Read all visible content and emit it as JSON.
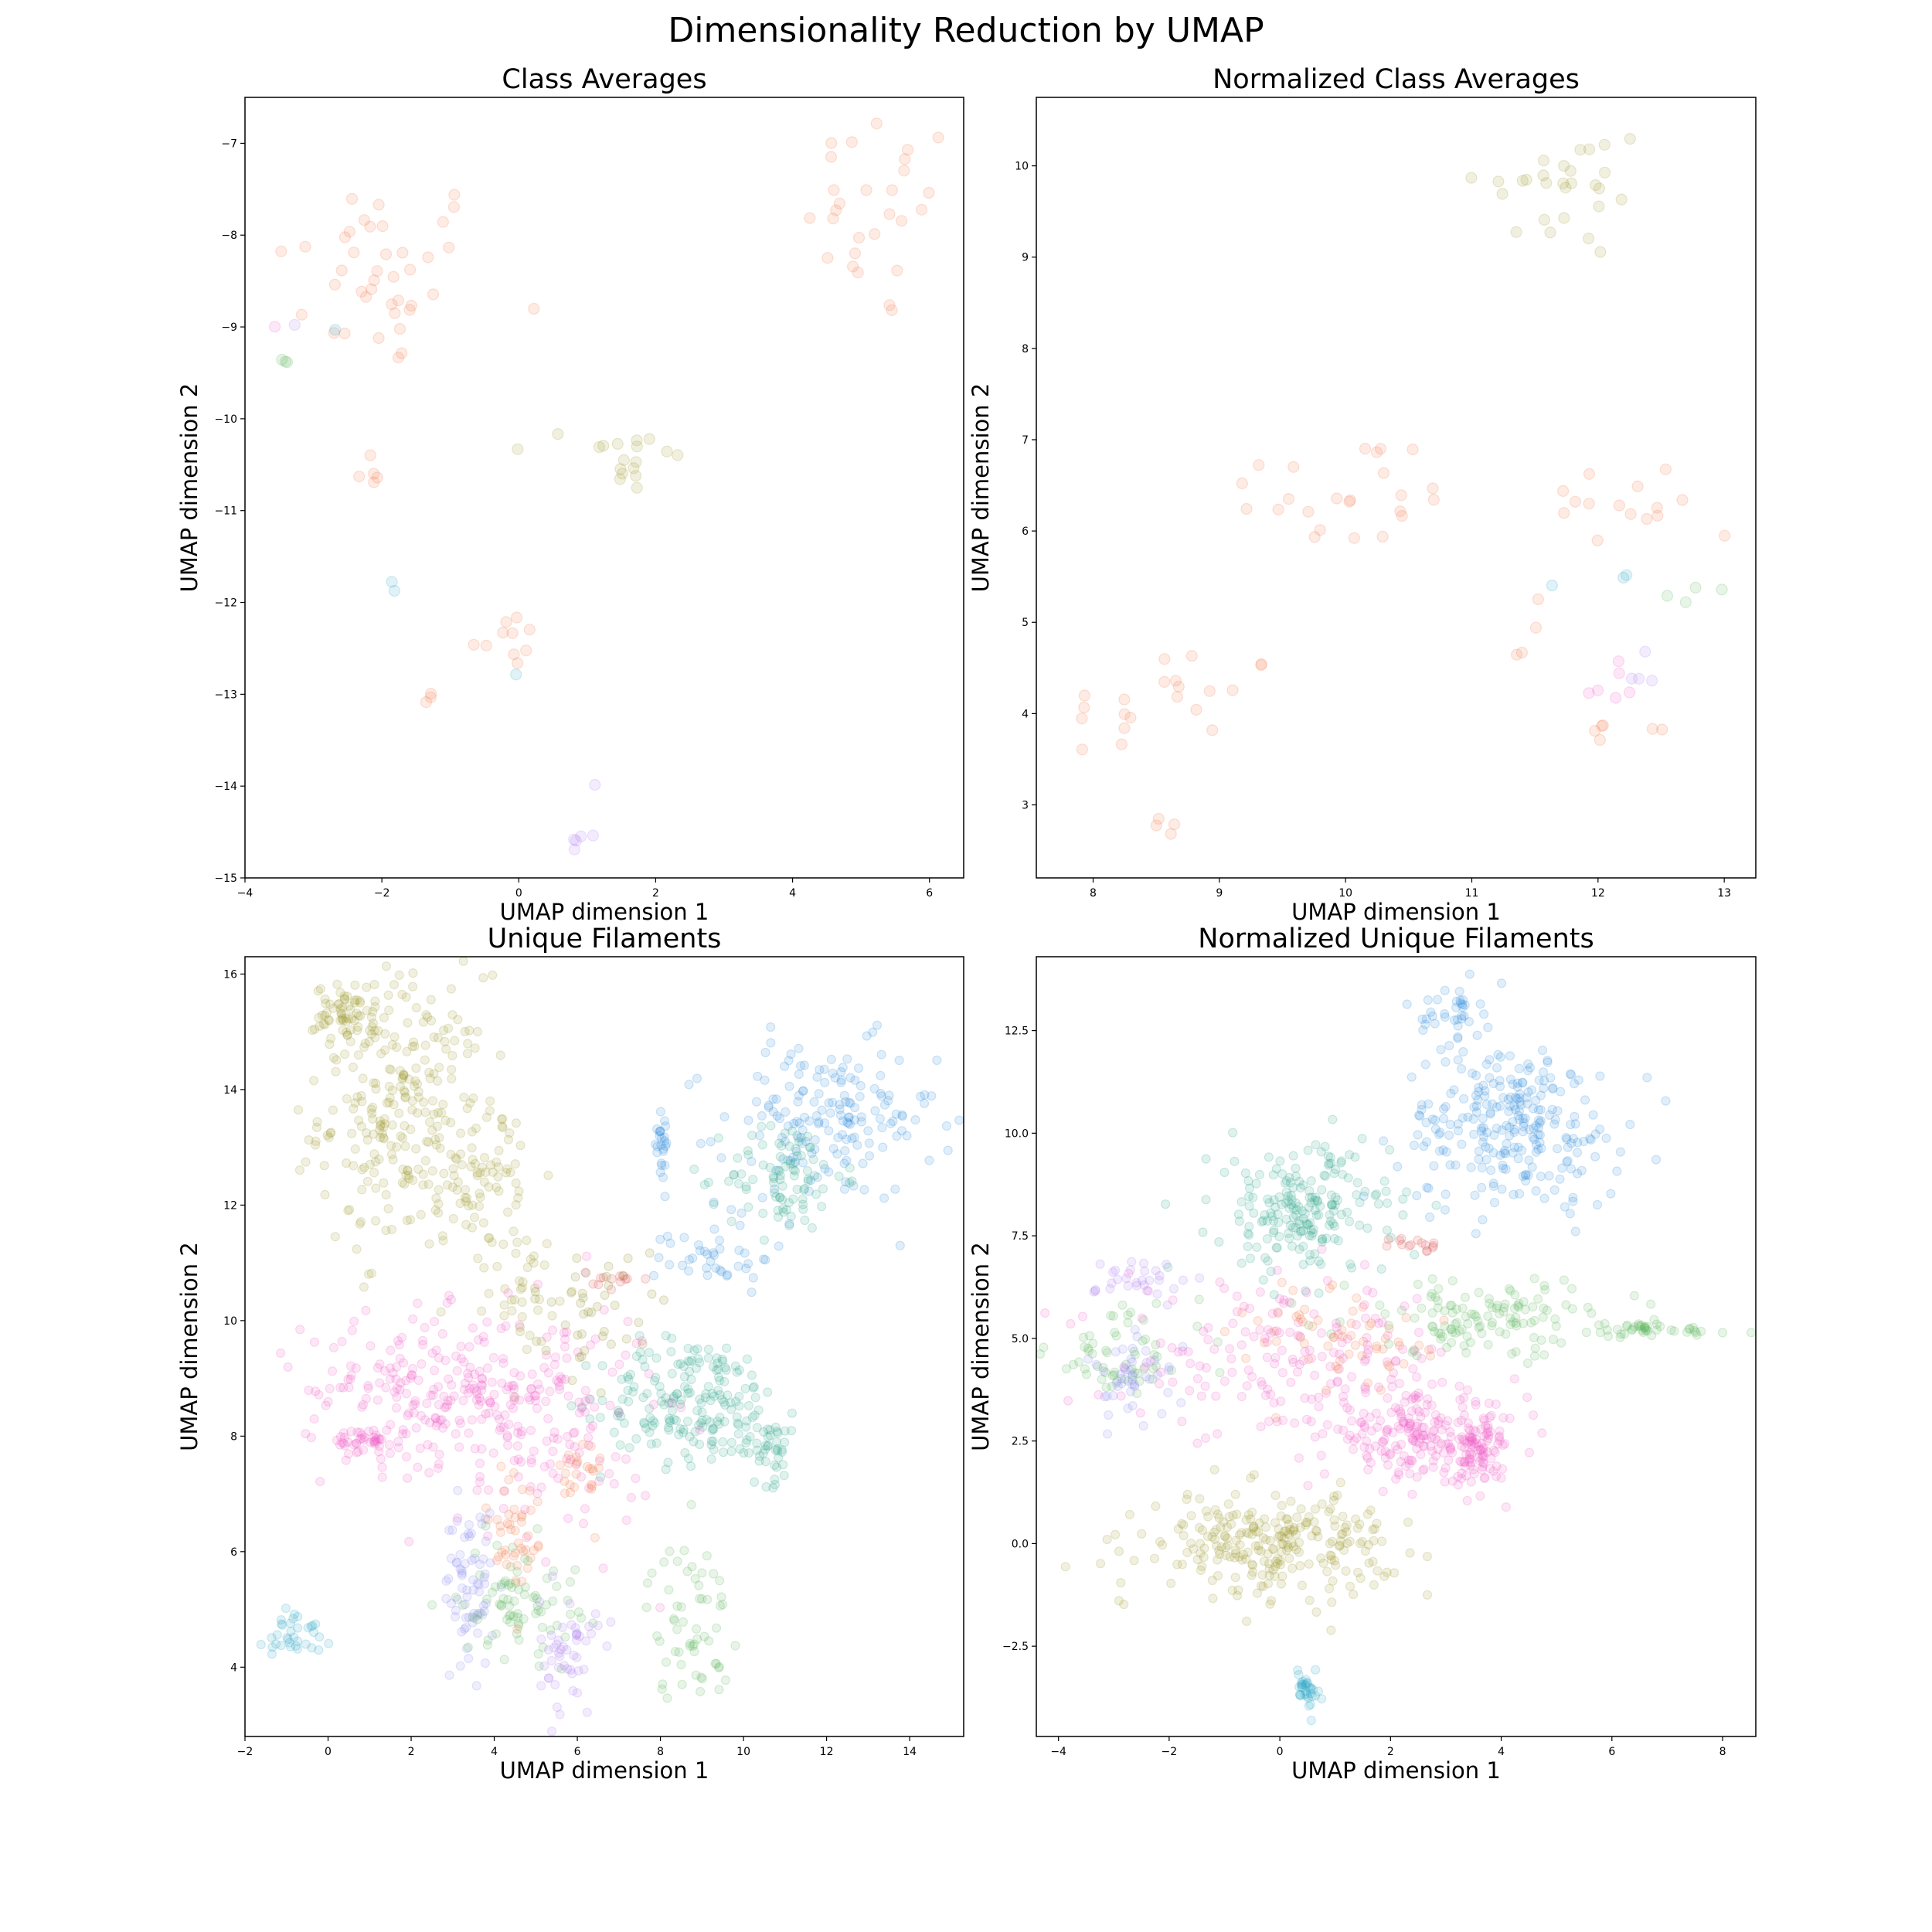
{
  "figure": {
    "title": "Dimensionality Reduction by UMAP"
  },
  "palette": {
    "orange": "#f47a4a",
    "olive": "#9e9a2f",
    "green": "#5cb85c",
    "teal": "#2fa58e",
    "blue": "#2f8fe0",
    "cyan": "#2ea8c8",
    "pink": "#f05ec8",
    "purple": "#b07ef0",
    "lavender": "#8c8cf0",
    "red": "#e05050",
    "khaki": "#8f8a20"
  },
  "chart_data": [
    {
      "type": "scatter",
      "title": "Class Averages",
      "xlabel": "UMAP dimension 1",
      "ylabel": "UMAP dimension 2",
      "xlim": [
        -4,
        6.5
      ],
      "ylim": [
        -15,
        -6.5
      ],
      "xticks": [
        "−4",
        "−2",
        "0",
        "2",
        "4",
        "6"
      ],
      "xtick_values": [
        -4,
        -2,
        0,
        2,
        4,
        6
      ],
      "yticks": [
        "−15",
        "−14",
        "−13",
        "−12",
        "−11",
        "−10",
        "−9",
        "−8",
        "−7"
      ],
      "ytick_values": [
        -15,
        -14,
        -13,
        -12,
        -11,
        -10,
        -9,
        -8,
        -7
      ],
      "alpha": 0.15,
      "clusters": [
        {
          "color": "orange",
          "cx": -2.0,
          "cy": -8.4,
          "sx": 0.8,
          "sy": 0.55,
          "n": 40
        },
        {
          "color": "orange",
          "cx": 5.3,
          "cy": -7.8,
          "sx": 0.55,
          "sy": 0.6,
          "n": 28
        },
        {
          "color": "orange",
          "cx": -2.2,
          "cy": -10.55,
          "sx": 0.1,
          "sy": 0.12,
          "n": 5
        },
        {
          "color": "orange",
          "cx": -0.2,
          "cy": -12.4,
          "sx": 0.25,
          "sy": 0.15,
          "n": 10
        },
        {
          "color": "orange",
          "cx": -1.3,
          "cy": -12.95,
          "sx": 0.12,
          "sy": 0.12,
          "n": 3
        },
        {
          "color": "olive",
          "cx": 1.6,
          "cy": -10.45,
          "sx": 0.4,
          "sy": 0.25,
          "n": 18
        },
        {
          "color": "green",
          "cx": -3.45,
          "cy": -9.35,
          "sx": 0.06,
          "sy": 0.08,
          "n": 3
        },
        {
          "color": "cyan",
          "cx": -2.7,
          "cy": -9.05,
          "sx": 0.02,
          "sy": 0.02,
          "n": 1
        },
        {
          "color": "pink",
          "cx": -3.55,
          "cy": -9.0,
          "sx": 0.02,
          "sy": 0.02,
          "n": 1
        },
        {
          "color": "purple",
          "cx": -3.25,
          "cy": -8.95,
          "sx": 0.02,
          "sy": 0.02,
          "n": 1
        },
        {
          "color": "cyan",
          "cx": -1.85,
          "cy": -11.85,
          "sx": 0.05,
          "sy": 0.05,
          "n": 2
        },
        {
          "color": "cyan",
          "cx": -0.05,
          "cy": -12.8,
          "sx": 0.02,
          "sy": 0.02,
          "n": 1
        },
        {
          "color": "purple",
          "cx": 0.9,
          "cy": -14.55,
          "sx": 0.08,
          "sy": 0.08,
          "n": 5
        },
        {
          "color": "purple",
          "cx": 1.1,
          "cy": -14.0,
          "sx": 0.02,
          "sy": 0.02,
          "n": 1
        }
      ]
    },
    {
      "type": "scatter",
      "title": "Normalized Class Averages",
      "xlabel": "UMAP dimension 1",
      "ylabel": "UMAP dimension 2",
      "xlim": [
        7.55,
        13.25
      ],
      "ylim": [
        2.2,
        10.75
      ],
      "xticks": [
        "8",
        "9",
        "10",
        "11",
        "12",
        "13"
      ],
      "xtick_values": [
        8,
        9,
        10,
        11,
        12,
        13
      ],
      "yticks": [
        "3",
        "4",
        "5",
        "6",
        "7",
        "8",
        "9",
        "10"
      ],
      "ytick_values": [
        3,
        4,
        5,
        6,
        7,
        8,
        9,
        10
      ],
      "alpha": 0.15,
      "clusters": [
        {
          "color": "olive",
          "cx": 11.75,
          "cy": 9.75,
          "sx": 0.35,
          "sy": 0.4,
          "n": 28
        },
        {
          "color": "orange",
          "cx": 10.0,
          "cy": 6.4,
          "sx": 0.5,
          "sy": 0.35,
          "n": 24
        },
        {
          "color": "orange",
          "cx": 12.3,
          "cy": 6.3,
          "sx": 0.5,
          "sy": 0.25,
          "n": 16
        },
        {
          "color": "orange",
          "cx": 8.6,
          "cy": 4.1,
          "sx": 0.45,
          "sy": 0.35,
          "n": 22
        },
        {
          "color": "orange",
          "cx": 8.5,
          "cy": 2.7,
          "sx": 0.1,
          "sy": 0.1,
          "n": 4
        },
        {
          "color": "orange",
          "cx": 12.25,
          "cy": 3.85,
          "sx": 0.15,
          "sy": 0.06,
          "n": 6
        },
        {
          "color": "orange",
          "cx": 11.4,
          "cy": 4.7,
          "sx": 0.12,
          "sy": 0.1,
          "n": 3
        },
        {
          "color": "pink",
          "cx": 12.1,
          "cy": 4.3,
          "sx": 0.15,
          "sy": 0.15,
          "n": 6
        },
        {
          "color": "purple",
          "cx": 12.3,
          "cy": 4.4,
          "sx": 0.12,
          "sy": 0.12,
          "n": 4
        },
        {
          "color": "green",
          "cx": 12.7,
          "cy": 5.35,
          "sx": 0.2,
          "sy": 0.12,
          "n": 4
        },
        {
          "color": "cyan",
          "cx": 11.8,
          "cy": 5.5,
          "sx": 0.25,
          "sy": 0.05,
          "n": 3
        }
      ]
    },
    {
      "type": "scatter",
      "title": "Unique Filaments",
      "xlabel": "UMAP dimension 1",
      "ylabel": "UMAP dimension 2",
      "xlim": [
        -2,
        15.3
      ],
      "ylim": [
        2.8,
        16.3
      ],
      "xticks": [
        "−2",
        "0",
        "2",
        "4",
        "6",
        "8",
        "10",
        "12",
        "14"
      ],
      "xtick_values": [
        -2,
        0,
        2,
        4,
        6,
        8,
        10,
        12,
        14
      ],
      "yticks": [
        "4",
        "6",
        "8",
        "10",
        "12",
        "14",
        "16"
      ],
      "ytick_values": [
        4,
        6,
        8,
        10,
        12,
        14,
        16
      ],
      "alpha": 0.15,
      "clusters": [
        {
          "color": "olive",
          "cx": 1.8,
          "cy": 13.6,
          "sx": 1.0,
          "sy": 1.2,
          "n": 260
        },
        {
          "color": "olive",
          "cx": 0.4,
          "cy": 15.3,
          "sx": 0.35,
          "sy": 0.25,
          "n": 60
        },
        {
          "color": "olive",
          "cx": 3.8,
          "cy": 12.6,
          "sx": 0.5,
          "sy": 0.6,
          "n": 60
        },
        {
          "color": "olive",
          "cx": 4.7,
          "cy": 10.6,
          "sx": 0.4,
          "sy": 0.5,
          "n": 40
        },
        {
          "color": "blue",
          "cx": 12.0,
          "cy": 13.4,
          "sx": 1.3,
          "sy": 0.7,
          "n": 170
        },
        {
          "color": "blue",
          "cx": 8.0,
          "cy": 13.2,
          "sx": 0.12,
          "sy": 0.4,
          "n": 25
        },
        {
          "color": "blue",
          "cx": 9.3,
          "cy": 11.1,
          "sx": 0.7,
          "sy": 0.3,
          "n": 40
        },
        {
          "color": "teal",
          "cx": 11.0,
          "cy": 12.5,
          "sx": 0.7,
          "sy": 0.5,
          "n": 90
        },
        {
          "color": "teal",
          "cx": 8.8,
          "cy": 8.6,
          "sx": 1.1,
          "sy": 0.55,
          "n": 190
        },
        {
          "color": "teal",
          "cx": 10.6,
          "cy": 7.8,
          "sx": 0.4,
          "sy": 0.3,
          "n": 40
        },
        {
          "color": "pink",
          "cx": 2.6,
          "cy": 8.8,
          "sx": 1.6,
          "sy": 0.65,
          "n": 220
        },
        {
          "color": "pink",
          "cx": 5.5,
          "cy": 8.2,
          "sx": 1.2,
          "sy": 1.1,
          "n": 130
        },
        {
          "color": "pink",
          "cx": 0.9,
          "cy": 7.9,
          "sx": 0.4,
          "sy": 0.12,
          "n": 40
        },
        {
          "color": "lavender",
          "cx": 3.4,
          "cy": 5.4,
          "sx": 0.3,
          "sy": 0.7,
          "n": 70
        },
        {
          "color": "green",
          "cx": 4.6,
          "cy": 5.2,
          "sx": 0.7,
          "sy": 0.5,
          "n": 80
        },
        {
          "color": "green",
          "cx": 8.7,
          "cy": 4.8,
          "sx": 0.5,
          "sy": 0.7,
          "n": 60
        },
        {
          "color": "orange",
          "cx": 4.5,
          "cy": 6.3,
          "sx": 0.35,
          "sy": 0.7,
          "n": 45
        },
        {
          "color": "orange",
          "cx": 6.1,
          "cy": 7.3,
          "sx": 0.25,
          "sy": 0.4,
          "n": 25
        },
        {
          "color": "red",
          "cx": 6.9,
          "cy": 10.7,
          "sx": 0.3,
          "sy": 0.08,
          "n": 12
        },
        {
          "color": "purple",
          "cx": 5.8,
          "cy": 4.2,
          "sx": 0.35,
          "sy": 0.5,
          "n": 50
        },
        {
          "color": "cyan",
          "cx": -0.8,
          "cy": 4.6,
          "sx": 0.35,
          "sy": 0.25,
          "n": 35
        },
        {
          "color": "khaki",
          "cx": 6.5,
          "cy": 10.2,
          "sx": 0.8,
          "sy": 0.5,
          "n": 40
        }
      ]
    },
    {
      "type": "scatter",
      "title": "Normalized Unique Filaments",
      "xlabel": "UMAP dimension 1",
      "ylabel": "UMAP dimension 2",
      "xlim": [
        -4.4,
        8.6
      ],
      "ylim": [
        -4.7,
        14.3
      ],
      "xticks": [
        "−4",
        "−2",
        "0",
        "2",
        "4",
        "6",
        "8"
      ],
      "xtick_values": [
        -4,
        -2,
        0,
        2,
        4,
        6,
        8
      ],
      "yticks": [
        "−2.5",
        "0.0",
        "2.5",
        "5.0",
        "7.5",
        "10.0",
        "12.5"
      ],
      "ytick_values": [
        -2.5,
        0,
        2.5,
        5,
        7.5,
        10,
        12.5
      ],
      "alpha": 0.15,
      "clusters": [
        {
          "color": "blue",
          "cx": 4.2,
          "cy": 10.2,
          "sx": 1.0,
          "sy": 1.0,
          "n": 260
        },
        {
          "color": "blue",
          "cx": 3.1,
          "cy": 13.0,
          "sx": 0.25,
          "sy": 0.3,
          "n": 35
        },
        {
          "color": "teal",
          "cx": 0.4,
          "cy": 8.1,
          "sx": 0.8,
          "sy": 0.8,
          "n": 200
        },
        {
          "color": "green",
          "cx": 3.8,
          "cy": 5.5,
          "sx": 1.3,
          "sy": 0.45,
          "n": 130
        },
        {
          "color": "green",
          "cx": 6.5,
          "cy": 5.2,
          "sx": 0.9,
          "sy": 0.1,
          "n": 40
        },
        {
          "color": "green",
          "cx": -2.8,
          "cy": 4.6,
          "sx": 0.7,
          "sy": 0.6,
          "n": 60
        },
        {
          "color": "pink",
          "cx": 2.6,
          "cy": 2.6,
          "sx": 0.9,
          "sy": 0.5,
          "n": 220
        },
        {
          "color": "pink",
          "cx": 0.2,
          "cy": 4.5,
          "sx": 1.5,
          "sy": 0.9,
          "n": 170
        },
        {
          "color": "pink",
          "cx": 3.5,
          "cy": 2.2,
          "sx": 0.3,
          "sy": 0.4,
          "n": 60
        },
        {
          "color": "olive",
          "cx": -0.2,
          "cy": 0.0,
          "sx": 1.1,
          "sy": 0.6,
          "n": 260
        },
        {
          "color": "cyan",
          "cx": 0.5,
          "cy": -3.5,
          "sx": 0.1,
          "sy": 0.25,
          "n": 35
        },
        {
          "color": "purple",
          "cx": -2.5,
          "cy": 6.4,
          "sx": 0.4,
          "sy": 0.3,
          "n": 30
        },
        {
          "color": "lavender",
          "cx": -2.6,
          "cy": 4.0,
          "sx": 0.4,
          "sy": 0.5,
          "n": 45
        },
        {
          "color": "orange",
          "cx": 1.2,
          "cy": 5.0,
          "sx": 0.9,
          "sy": 0.7,
          "n": 60
        },
        {
          "color": "red",
          "cx": 2.4,
          "cy": 7.3,
          "sx": 0.2,
          "sy": 0.1,
          "n": 15
        }
      ]
    }
  ]
}
